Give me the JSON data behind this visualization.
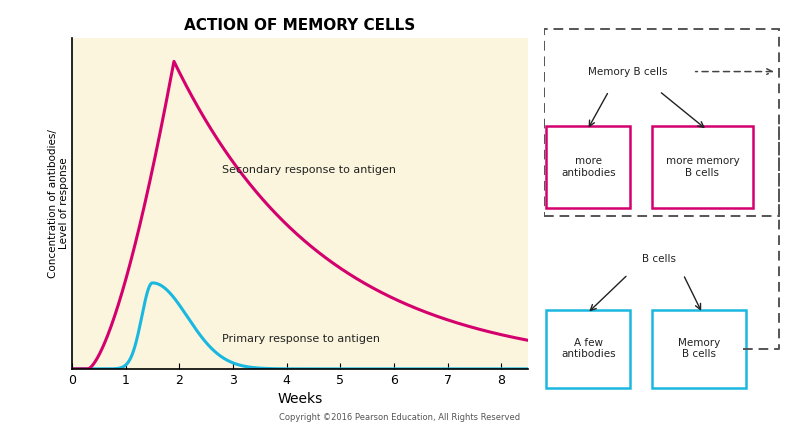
{
  "title": "ACTION OF MEMORY CELLS",
  "bg_color": "#faf5dc",
  "fig_bg": "#ffffff",
  "xlabel": "Weeks",
  "ylabel": "Concentration of antibodies/\nLevel of response",
  "xticks": [
    0,
    1,
    2,
    3,
    4,
    5,
    6,
    7,
    8
  ],
  "primary_color": "#1ab8e0",
  "secondary_color": "#d4006e",
  "primary_label": "Primary response to antigen",
  "secondary_label": "Secondary response to antigen",
  "copyright": "Copyright ©2016 Pearson Education, All Rights Reserved",
  "box_pink": "#d4006e",
  "box_cyan": "#1ab8e0",
  "text_color": "#222222"
}
